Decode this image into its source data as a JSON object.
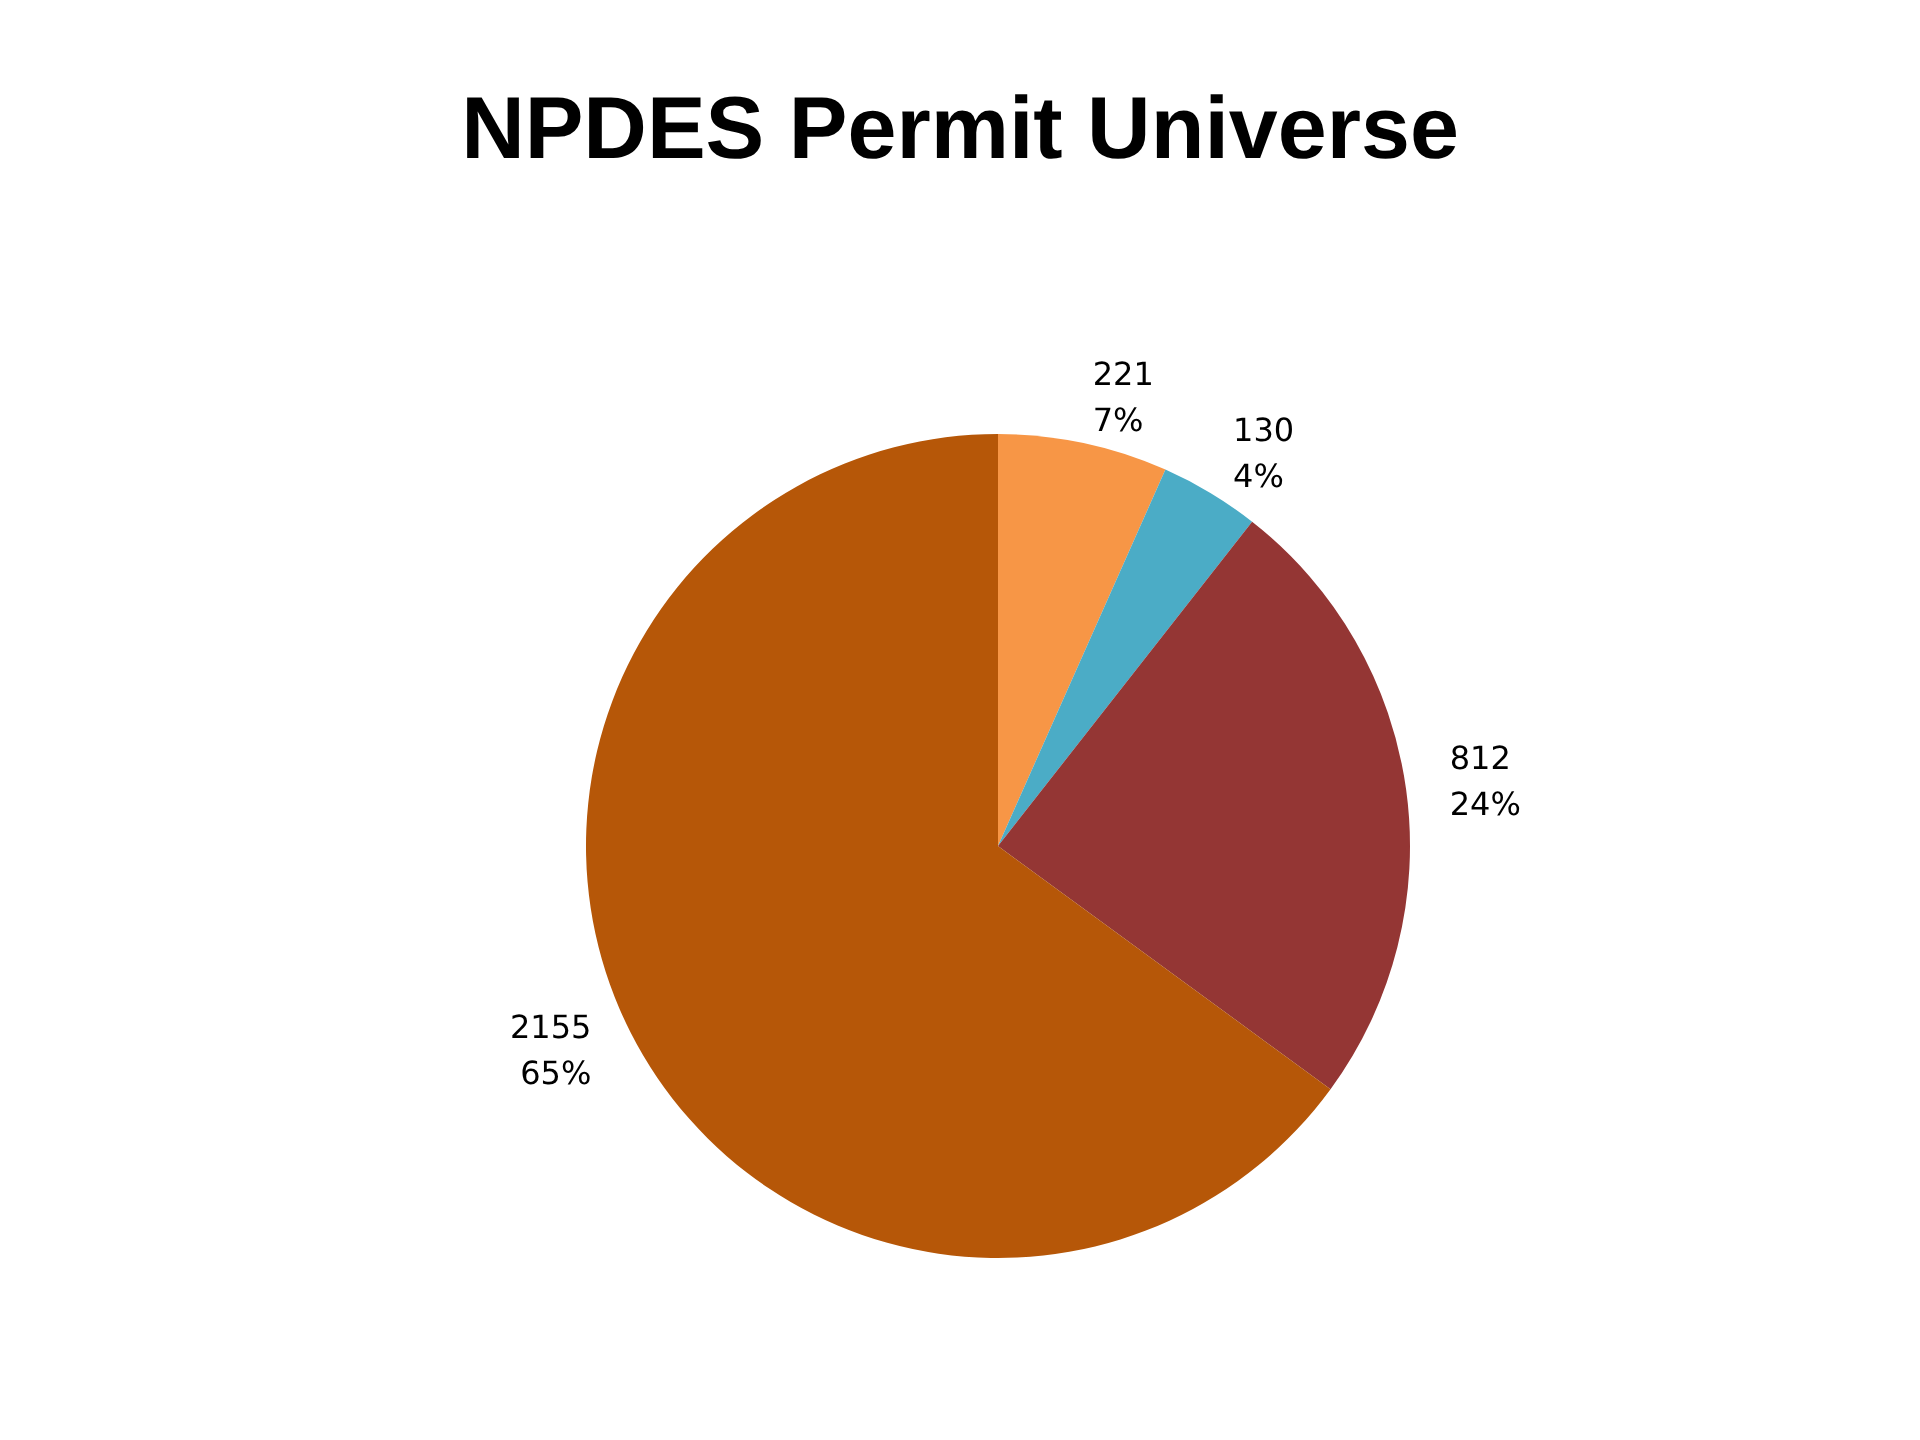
{
  "chart_data": {
    "type": "pie",
    "title": "NPDES Permit Universe",
    "categories": [
      null,
      null,
      null,
      null
    ],
    "values": [
      221,
      130,
      812,
      2155
    ],
    "colors": [
      "#f79646",
      "#4bacc6",
      "#943634",
      "#b65708"
    ],
    "value_labels": [
      "221\n7%",
      "130\n4%",
      "812\n24%",
      "2155\n65%"
    ],
    "legend": false
  }
}
